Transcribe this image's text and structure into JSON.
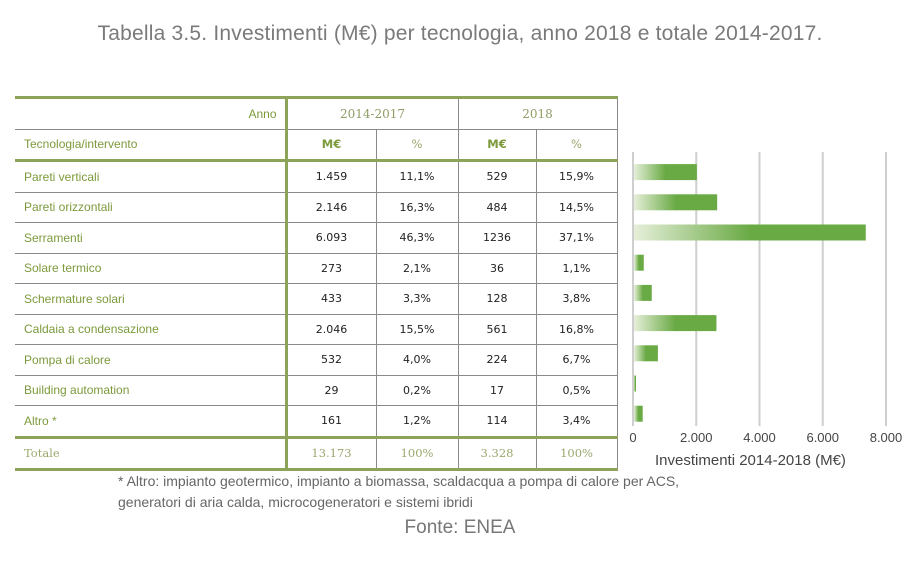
{
  "title": "Tabella 3.5. Investimenti (M€) per tecnologia, anno 2018 e totale 2014-2017.",
  "table": {
    "anno_label": "Anno",
    "row_header_label": "Tecnologia/intervento",
    "groups": [
      "2014-2017",
      "2018"
    ],
    "units": [
      "M€",
      "%",
      "M€",
      "%"
    ],
    "rows": [
      {
        "label": "Pareti verticali",
        "v1": "1.459",
        "p1": "11,1%",
        "v2": "529",
        "p2": "15,9%"
      },
      {
        "label": "Pareti orizzontali",
        "v1": "2.146",
        "p1": "16,3%",
        "v2": "484",
        "p2": "14,5%"
      },
      {
        "label": "Serramenti",
        "v1": "6.093",
        "p1": "46,3%",
        "v2": "1236",
        "p2": "37,1%"
      },
      {
        "label": "Solare termico",
        "v1": "273",
        "p1": "2,1%",
        "v2": "36",
        "p2": "1,1%"
      },
      {
        "label": "Schermature solari",
        "v1": "433",
        "p1": "3,3%",
        "v2": "128",
        "p2": "3,8%"
      },
      {
        "label": "Caldaia a condensazione",
        "v1": "2.046",
        "p1": "15,5%",
        "v2": "561",
        "p2": "16,8%"
      },
      {
        "label": "Pompa di calore",
        "v1": "532",
        "p1": "4,0%",
        "v2": "224",
        "p2": "6,7%"
      },
      {
        "label": "Building automation",
        "v1": "29",
        "p1": "0,2%",
        "v2": "17",
        "p2": "0,5%"
      },
      {
        "label": "Altro *",
        "v1": "161",
        "p1": "1,2%",
        "v2": "114",
        "p2": "3,4%"
      }
    ],
    "total": {
      "label": "Totale",
      "v1": "13.173",
      "p1": "100%",
      "v2": "3.328",
      "p2": "100%"
    }
  },
  "chart_data": {
    "type": "bar",
    "orientation": "horizontal",
    "title": "",
    "xlabel": "Investimenti 2014-2018 (M€)",
    "ylabel": "",
    "categories": [
      "Pareti verticali",
      "Pareti orizzontali",
      "Serramenti",
      "Solare termico",
      "Schermature solari",
      "Caldaia a condensazione",
      "Pompa di calore",
      "Building automation",
      "Altro *"
    ],
    "values": [
      1988,
      2630,
      7329,
      309,
      561,
      2607,
      756,
      46,
      275
    ],
    "xlim": [
      0,
      8000
    ],
    "xticks": [
      0,
      2000,
      4000,
      6000,
      8000
    ],
    "xtick_labels": [
      "0",
      "2.000",
      "4.000",
      "6.000",
      "8.000"
    ],
    "grid": true,
    "bar_color": "#6aaa45"
  },
  "footnote_lines": [
    "* Altro: impianto geotermico, impianto a biomassa, scaldacqua a pompa di calore per ACS,",
    "generatori di aria calda, microcogeneratori e sistemi ibridi"
  ],
  "source": "Fonte: ENEA"
}
